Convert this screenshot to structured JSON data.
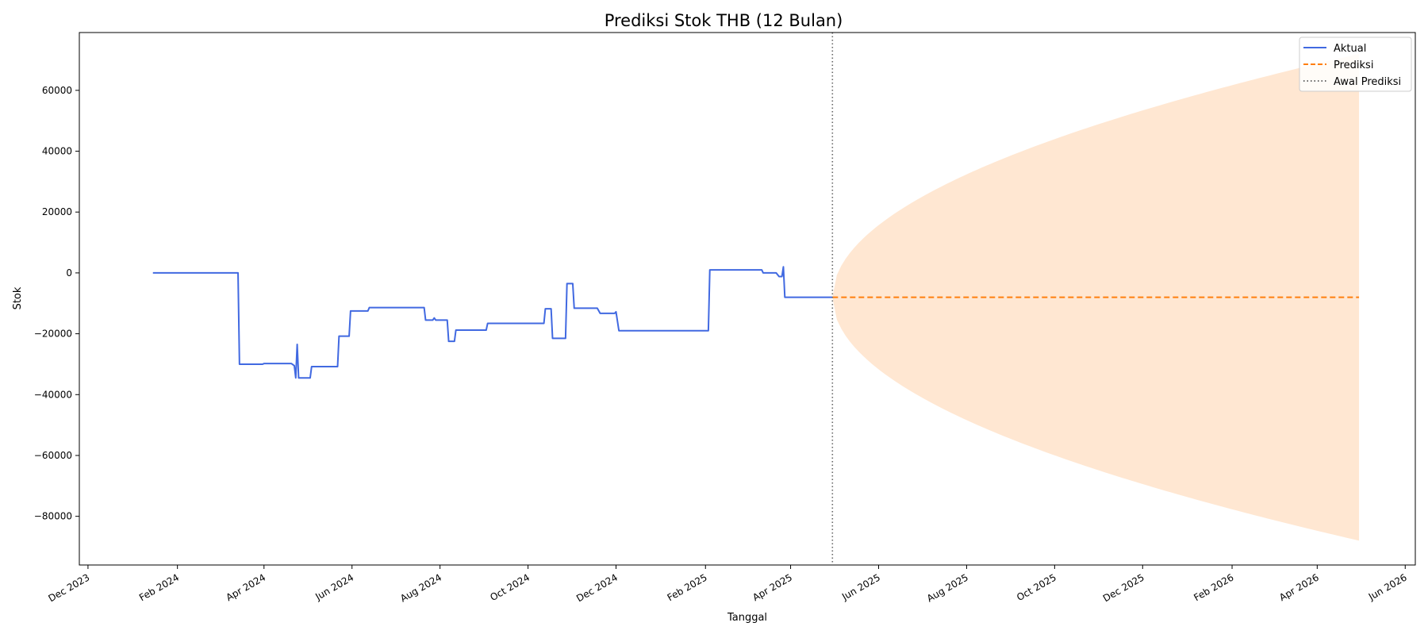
{
  "chart_data": {
    "type": "line",
    "title": "Prediksi Stok THB (12 Bulan)",
    "xlabel": "Tanggal",
    "ylabel": "Stok",
    "xlim": [
      "2023-11-25",
      "2026-06-08"
    ],
    "ylim": [
      -96000,
      79000
    ],
    "x_ticks": [
      {
        "date": "2023-12-01",
        "label": "Dec 2023"
      },
      {
        "date": "2024-02-01",
        "label": "Feb 2024"
      },
      {
        "date": "2024-04-01",
        "label": "Apr 2024"
      },
      {
        "date": "2024-06-01",
        "label": "Jun 2024"
      },
      {
        "date": "2024-08-01",
        "label": "Aug 2024"
      },
      {
        "date": "2024-10-01",
        "label": "Oct 2024"
      },
      {
        "date": "2024-12-01",
        "label": "Dec 2024"
      },
      {
        "date": "2025-02-01",
        "label": "Feb 2025"
      },
      {
        "date": "2025-04-01",
        "label": "Apr 2025"
      },
      {
        "date": "2025-06-01",
        "label": "Jun 2025"
      },
      {
        "date": "2025-08-01",
        "label": "Aug 2025"
      },
      {
        "date": "2025-10-01",
        "label": "Oct 2025"
      },
      {
        "date": "2025-12-01",
        "label": "Dec 2025"
      },
      {
        "date": "2026-02-01",
        "label": "Feb 2026"
      },
      {
        "date": "2026-04-01",
        "label": "Apr 2026"
      },
      {
        "date": "2026-06-01",
        "label": "Jun 2026"
      }
    ],
    "y_ticks": [
      {
        "value": 60000,
        "label": "60000"
      },
      {
        "value": 40000,
        "label": "40000"
      },
      {
        "value": 20000,
        "label": "20000"
      },
      {
        "value": 0,
        "label": "0"
      },
      {
        "value": -20000,
        "label": "−20000"
      },
      {
        "value": -40000,
        "label": "−40000"
      },
      {
        "value": -60000,
        "label": "−60000"
      },
      {
        "value": -80000,
        "label": "−80000"
      }
    ],
    "grid": false,
    "legend_position": "top-right",
    "series": [
      {
        "name": "Aktual",
        "color": "#4169e1",
        "style": "solid",
        "points": [
          [
            "2024-01-15",
            0
          ],
          [
            "2024-03-14",
            0
          ],
          [
            "2024-03-15",
            -30000
          ],
          [
            "2024-03-31",
            -30000
          ],
          [
            "2024-04-01",
            -29800
          ],
          [
            "2024-04-20",
            -29800
          ],
          [
            "2024-04-22",
            -30500
          ],
          [
            "2024-04-23",
            -34500
          ],
          [
            "2024-04-24",
            -23500
          ],
          [
            "2024-04-25",
            -34500
          ],
          [
            "2024-05-03",
            -34500
          ],
          [
            "2024-05-04",
            -30800
          ],
          [
            "2024-05-22",
            -30800
          ],
          [
            "2024-05-23",
            -20800
          ],
          [
            "2024-05-30",
            -20800
          ],
          [
            "2024-05-31",
            -12500
          ],
          [
            "2024-06-12",
            -12500
          ],
          [
            "2024-06-13",
            -11400
          ],
          [
            "2024-07-21",
            -11400
          ],
          [
            "2024-07-22",
            -15500
          ],
          [
            "2024-07-27",
            -15500
          ],
          [
            "2024-07-28",
            -14800
          ],
          [
            "2024-07-29",
            -15500
          ],
          [
            "2024-08-06",
            -15500
          ],
          [
            "2024-08-07",
            -22500
          ],
          [
            "2024-08-11",
            -22500
          ],
          [
            "2024-08-12",
            -18800
          ],
          [
            "2024-09-02",
            -18800
          ],
          [
            "2024-09-03",
            -16600
          ],
          [
            "2024-10-12",
            -16600
          ],
          [
            "2024-10-13",
            -11800
          ],
          [
            "2024-10-17",
            -11800
          ],
          [
            "2024-10-18",
            -21500
          ],
          [
            "2024-10-27",
            -21500
          ],
          [
            "2024-10-28",
            -3500
          ],
          [
            "2024-11-01",
            -3500
          ],
          [
            "2024-11-02",
            -11600
          ],
          [
            "2024-11-18",
            -11600
          ],
          [
            "2024-11-20",
            -13300
          ],
          [
            "2024-11-30",
            -13300
          ],
          [
            "2024-12-01",
            -12800
          ],
          [
            "2024-12-03",
            -19000
          ],
          [
            "2025-02-03",
            -19000
          ],
          [
            "2025-02-04",
            1000
          ],
          [
            "2025-03-12",
            1000
          ],
          [
            "2025-03-13",
            0
          ],
          [
            "2025-03-22",
            0
          ],
          [
            "2025-03-24",
            -1200
          ],
          [
            "2025-03-26",
            -1200
          ],
          [
            "2025-03-27",
            2000
          ],
          [
            "2025-03-28",
            -8000
          ],
          [
            "2025-04-30",
            -8000
          ]
        ]
      },
      {
        "name": "Prediksi",
        "color": "#ff7f0e",
        "style": "dashed",
        "points": [
          [
            "2025-04-30",
            -8000
          ],
          [
            "2026-04-30",
            -8000
          ]
        ]
      }
    ],
    "forecast_band": {
      "color": "#ffe7d2",
      "center": -8000,
      "start": "2025-04-30",
      "end": "2026-04-30",
      "half_width_at_end": 80000
    },
    "annotations": [
      {
        "name": "Awal Prediksi",
        "type": "vline",
        "date": "2025-04-30",
        "color": "#666666",
        "style": "dotted"
      }
    ]
  }
}
